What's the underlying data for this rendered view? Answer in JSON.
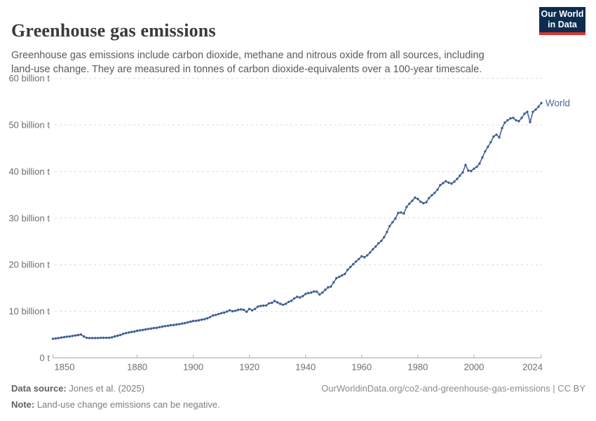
{
  "header": {
    "title": "Greenhouse gas emissions",
    "subtitle": "Greenhouse gas emissions include carbon dioxide, methane and nitrous oxide from all sources, including land-use change. They are measured in tonnes of carbon dioxide-equivalents over a 100-year timescale.",
    "logo": {
      "line1": "Our World",
      "line2": "in Data",
      "bg_color": "#0c2d4f",
      "accent_color": "#dc352b"
    }
  },
  "chart_data": {
    "type": "line",
    "title": "Greenhouse gas emissions",
    "xlabel": "",
    "ylabel": "",
    "unit": "billion tonnes of CO2-equivalents",
    "xlim": [
      1850,
      2024
    ],
    "ylim": [
      0,
      60
    ],
    "grid": "horizontal dashed",
    "legend_position": "end-of-line label",
    "line_color": "#405e92",
    "label_color": "#4c669f",
    "x_ticks": [
      {
        "year": 1850,
        "label": "1850"
      },
      {
        "year": 1880,
        "label": "1880"
      },
      {
        "year": 1900,
        "label": "1900"
      },
      {
        "year": 1920,
        "label": "1920"
      },
      {
        "year": 1940,
        "label": "1940"
      },
      {
        "year": 1960,
        "label": "1960"
      },
      {
        "year": 1980,
        "label": "1980"
      },
      {
        "year": 2000,
        "label": "2000"
      },
      {
        "year": 2024,
        "label": "2024"
      }
    ],
    "y_ticks": [
      {
        "value": 0,
        "label": "0 t"
      },
      {
        "value": 10,
        "label": "10 billion t"
      },
      {
        "value": 20,
        "label": "20 billion t"
      },
      {
        "value": 30,
        "label": "30 billion t"
      },
      {
        "value": 40,
        "label": "40 billion t"
      },
      {
        "value": 50,
        "label": "50 billion t"
      },
      {
        "value": 60,
        "label": "60 billion t"
      }
    ],
    "series": [
      {
        "name": "World",
        "years": [
          1850,
          1851,
          1852,
          1853,
          1854,
          1855,
          1856,
          1857,
          1858,
          1859,
          1860,
          1861,
          1862,
          1863,
          1864,
          1865,
          1866,
          1867,
          1868,
          1869,
          1870,
          1871,
          1872,
          1873,
          1874,
          1875,
          1876,
          1877,
          1878,
          1879,
          1880,
          1881,
          1882,
          1883,
          1884,
          1885,
          1886,
          1887,
          1888,
          1889,
          1890,
          1891,
          1892,
          1893,
          1894,
          1895,
          1896,
          1897,
          1898,
          1899,
          1900,
          1901,
          1902,
          1903,
          1904,
          1905,
          1906,
          1907,
          1908,
          1909,
          1910,
          1911,
          1912,
          1913,
          1914,
          1915,
          1916,
          1917,
          1918,
          1919,
          1920,
          1921,
          1922,
          1923,
          1924,
          1925,
          1926,
          1927,
          1928,
          1929,
          1930,
          1931,
          1932,
          1933,
          1934,
          1935,
          1936,
          1937,
          1938,
          1939,
          1940,
          1941,
          1942,
          1943,
          1944,
          1945,
          1946,
          1947,
          1948,
          1949,
          1950,
          1951,
          1952,
          1953,
          1954,
          1955,
          1956,
          1957,
          1958,
          1959,
          1960,
          1961,
          1962,
          1963,
          1964,
          1965,
          1966,
          1967,
          1968,
          1969,
          1970,
          1971,
          1972,
          1973,
          1974,
          1975,
          1976,
          1977,
          1978,
          1979,
          1980,
          1981,
          1982,
          1983,
          1984,
          1985,
          1986,
          1987,
          1988,
          1989,
          1990,
          1991,
          1992,
          1993,
          1994,
          1995,
          1996,
          1997,
          1998,
          1999,
          2000,
          2001,
          2002,
          2003,
          2004,
          2005,
          2006,
          2007,
          2008,
          2009,
          2010,
          2011,
          2012,
          2013,
          2014,
          2015,
          2016,
          2017,
          2018,
          2019,
          2020,
          2021,
          2022,
          2023,
          2024
        ],
        "values": [
          4.1,
          4.15,
          4.25,
          4.35,
          4.45,
          4.55,
          4.6,
          4.7,
          4.8,
          4.9,
          5.0,
          4.6,
          4.3,
          4.25,
          4.25,
          4.25,
          4.25,
          4.3,
          4.3,
          4.3,
          4.3,
          4.4,
          4.6,
          4.75,
          4.9,
          5.15,
          5.3,
          5.45,
          5.55,
          5.65,
          5.8,
          5.9,
          6.0,
          6.1,
          6.2,
          6.3,
          6.4,
          6.45,
          6.6,
          6.7,
          6.8,
          6.9,
          7.0,
          7.05,
          7.15,
          7.25,
          7.35,
          7.45,
          7.6,
          7.75,
          7.9,
          7.95,
          8.05,
          8.2,
          8.3,
          8.5,
          8.75,
          9.1,
          9.2,
          9.4,
          9.6,
          9.7,
          9.95,
          10.2,
          10.0,
          10.1,
          10.3,
          10.4,
          10.3,
          9.9,
          10.5,
          10.2,
          10.5,
          11.0,
          11.15,
          11.2,
          11.25,
          11.7,
          11.8,
          12.2,
          11.9,
          11.6,
          11.4,
          11.6,
          12.0,
          12.25,
          12.75,
          13.1,
          12.95,
          13.25,
          13.7,
          13.9,
          14.0,
          14.25,
          14.2,
          13.6,
          14.0,
          14.6,
          15.1,
          15.3,
          16.2,
          17.1,
          17.4,
          17.7,
          18.0,
          18.9,
          19.5,
          20.1,
          20.7,
          21.2,
          21.8,
          21.6,
          22.0,
          22.6,
          23.3,
          23.9,
          24.6,
          25.1,
          25.9,
          27.0,
          28.3,
          29.1,
          29.9,
          31.1,
          31.2,
          31.0,
          32.4,
          33.1,
          33.7,
          34.4,
          34.1,
          33.5,
          33.2,
          33.4,
          34.3,
          34.9,
          35.4,
          36.1,
          37.1,
          37.5,
          37.9,
          37.6,
          37.4,
          37.8,
          38.4,
          39.1,
          39.8,
          41.4,
          40.2,
          40.1,
          40.6,
          41.0,
          41.7,
          43.0,
          44.3,
          45.3,
          46.3,
          47.5,
          47.9,
          47.3,
          49.3,
          50.5,
          51.0,
          51.4,
          51.5,
          51.0,
          50.8,
          51.5,
          52.4,
          52.8,
          50.6,
          52.8,
          53.3,
          53.9,
          54.7
        ]
      }
    ]
  },
  "footer": {
    "source_label": "Data source:",
    "source_value": " Jones et al. (2025)",
    "note_label": "Note:",
    "note_value": " Land-use change emissions can be negative.",
    "link": "OurWorldinData.org/co2-and-greenhouse-gas-emissions | CC BY"
  }
}
